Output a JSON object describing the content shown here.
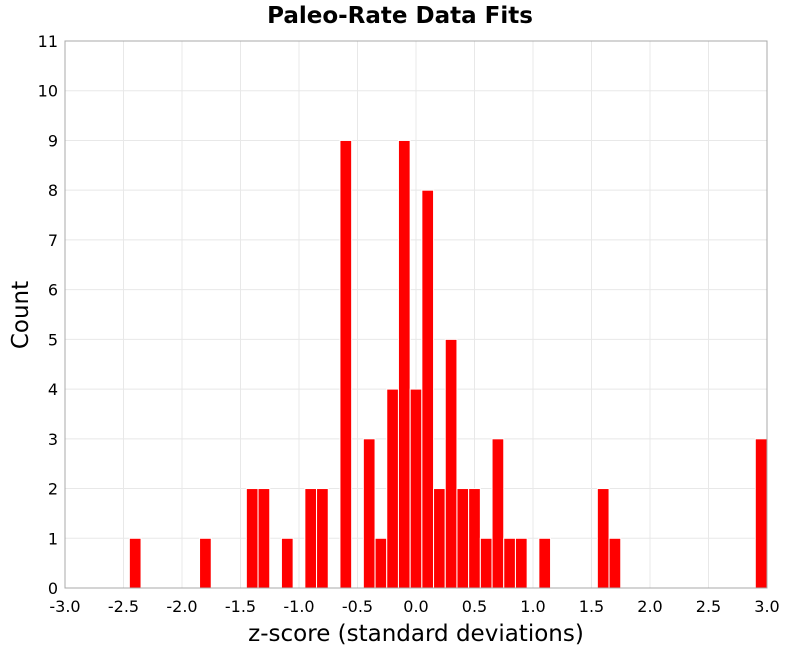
{
  "chart_data": {
    "type": "bar",
    "title": "Paleo-Rate Data Fits",
    "xlabel": "z-score (standard deviations)",
    "ylabel": "Count",
    "xlim": [
      -3.0,
      3.0
    ],
    "ylim": [
      0,
      11
    ],
    "bin_width": 0.1,
    "x_ticks": [
      "-3.0",
      "-2.5",
      "-2.0",
      "-1.5",
      "-1.0",
      "-0.5",
      "0.0",
      "0.5",
      "1.0",
      "1.5",
      "2.0",
      "2.5",
      "3.0"
    ],
    "y_ticks": [
      "0",
      "1",
      "2",
      "3",
      "4",
      "5",
      "6",
      "7",
      "8",
      "9",
      "10",
      "11"
    ],
    "grid": true,
    "bar_color": "#ff0000",
    "bins": [
      {
        "start": -2.45,
        "end": -2.35,
        "count": 1
      },
      {
        "start": -1.85,
        "end": -1.75,
        "count": 1
      },
      {
        "start": -1.45,
        "end": -1.35,
        "count": 2
      },
      {
        "start": -1.35,
        "end": -1.25,
        "count": 2
      },
      {
        "start": -1.15,
        "end": -1.05,
        "count": 1
      },
      {
        "start": -0.95,
        "end": -0.85,
        "count": 2
      },
      {
        "start": -0.85,
        "end": -0.75,
        "count": 2
      },
      {
        "start": -0.65,
        "end": -0.55,
        "count": 9
      },
      {
        "start": -0.45,
        "end": -0.35,
        "count": 3
      },
      {
        "start": -0.35,
        "end": -0.25,
        "count": 1
      },
      {
        "start": -0.25,
        "end": -0.15,
        "count": 4
      },
      {
        "start": -0.15,
        "end": -0.05,
        "count": 9
      },
      {
        "start": -0.05,
        "end": 0.05,
        "count": 4
      },
      {
        "start": 0.05,
        "end": 0.15,
        "count": 8
      },
      {
        "start": 0.15,
        "end": 0.25,
        "count": 2
      },
      {
        "start": 0.25,
        "end": 0.35,
        "count": 5
      },
      {
        "start": 0.35,
        "end": 0.45,
        "count": 2
      },
      {
        "start": 0.45,
        "end": 0.55,
        "count": 2
      },
      {
        "start": 0.55,
        "end": 0.65,
        "count": 1
      },
      {
        "start": 0.65,
        "end": 0.75,
        "count": 3
      },
      {
        "start": 0.75,
        "end": 0.85,
        "count": 1
      },
      {
        "start": 0.85,
        "end": 0.95,
        "count": 1
      },
      {
        "start": 1.05,
        "end": 1.15,
        "count": 1
      },
      {
        "start": 1.55,
        "end": 1.65,
        "count": 2
      },
      {
        "start": 1.65,
        "end": 1.75,
        "count": 1
      },
      {
        "start": 2.9,
        "end": 3.0,
        "count": 3
      }
    ]
  }
}
